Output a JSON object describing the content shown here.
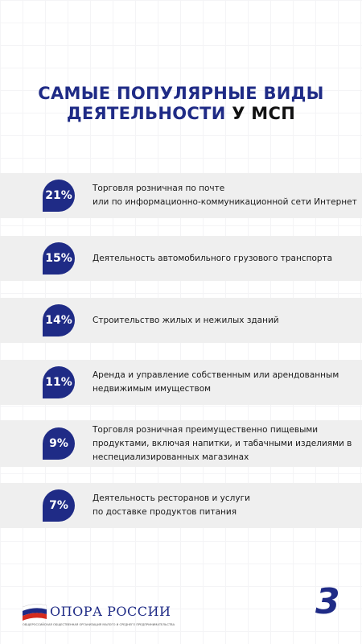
{
  "title": {
    "line1": "САМЫЕ ПОПУЛЯРНЫЕ ВИДЫ",
    "line2_accent": "ДЕЯТЕЛЬНОСТИ",
    "line2_rest": "У МСП"
  },
  "items": [
    {
      "percent": "21%",
      "lines": [
        "Торговля розничная по почте",
        "или по информационно-коммуникационной сети Интернет"
      ]
    },
    {
      "percent": "15%",
      "lines": [
        "Деятельность автомобильного грузового транспорта"
      ]
    },
    {
      "percent": "14%",
      "lines": [
        "Строительство жилых и нежилых зданий"
      ]
    },
    {
      "percent": "11%",
      "lines": [
        "Аренда и управление собственным или арендованным",
        "недвижимым имуществом"
      ]
    },
    {
      "percent": "9%",
      "lines": [
        "Торговля розничная преимущественно пищевыми",
        "продуктами, включая напитки, и табачными изделиями в",
        "неспециализированных магазинах"
      ]
    },
    {
      "percent": "7%",
      "lines": [
        "Деятельность ресторанов и услуги",
        "по доставке продуктов питания"
      ]
    }
  ],
  "footer": {
    "logo_name": "ОПОРА РОССИИ",
    "logo_caption": "ОБЩЕРОССИЙСКАЯ ОБЩЕСТВЕННАЯ ОРГАНИЗАЦИЯ МАЛОГО И СРЕДНЕГО ПРЕДПРИНИМАТЕЛЬСТВА",
    "page_number": "3"
  }
}
